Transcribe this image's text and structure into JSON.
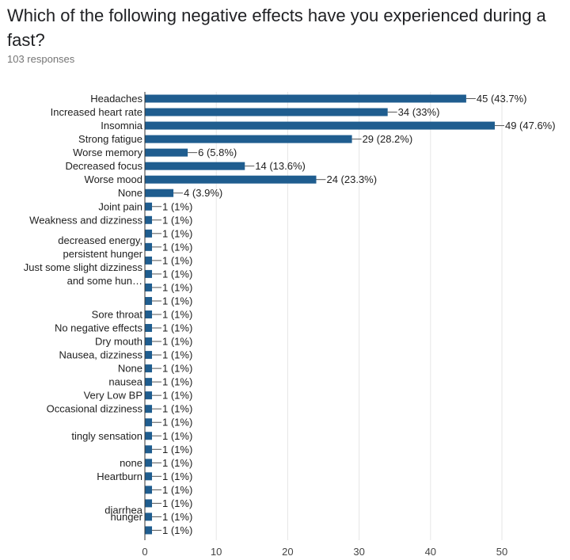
{
  "question": {
    "title": "Which of the following negative effects have you experienced during a fast?",
    "responses": "103 responses"
  },
  "colors": {
    "bar": "#1f5d8f",
    "grid": "#e6e6e6",
    "axis": "#333333",
    "text": "#212121"
  },
  "chart_data": {
    "type": "bar",
    "orientation": "horizontal",
    "title": "",
    "xlabel": "",
    "ylabel": "",
    "xlim": [
      0,
      50
    ],
    "xticks": [
      0,
      10,
      20,
      30,
      40,
      50
    ],
    "grid": true,
    "categories": [
      "Headaches",
      "Increased heart rate",
      "Insomnia",
      "Strong fatigue",
      "Worse memory",
      "Decreased focus",
      "Worse mood",
      "None",
      "Joint pain",
      "Weakness and dizziness",
      "",
      "",
      "",
      "",
      "",
      "",
      "Sore throat",
      "No negative effects",
      "Dry mouth",
      "Nausea, dizziness",
      "None",
      "nausea",
      "Very Low BP",
      "Occasional dizziness",
      "",
      "",
      "",
      "none",
      "Heartburn",
      "",
      "",
      "hunger",
      ""
    ],
    "wrapped_labels": [
      {
        "text": "decreased energy,",
        "after_row": 10
      },
      {
        "text": "persistent hunger",
        "after_row": 11
      },
      {
        "text": "Just some slight dizziness",
        "after_row": 12
      },
      {
        "text": "and some hun…",
        "after_row": 13
      },
      {
        "text": "tingly sensation",
        "after_row": 24.5
      },
      {
        "text": "diarrhea",
        "after_row": 30
      }
    ],
    "values": [
      45,
      34,
      49,
      29,
      6,
      14,
      24,
      4,
      1,
      1,
      1,
      1,
      1,
      1,
      1,
      1,
      1,
      1,
      1,
      1,
      1,
      1,
      1,
      1,
      1,
      1,
      1,
      1,
      1,
      1,
      1,
      1,
      1
    ],
    "data_labels": [
      "45 (43.7%)",
      "34 (33%)",
      "49 (47.6%)",
      "29 (28.2%)",
      "6 (5.8%)",
      "14 (13.6%)",
      "24 (23.3%)",
      "4 (3.9%)",
      "1 (1%)",
      "1 (1%)",
      "1 (1%)",
      "1 (1%)",
      "1 (1%)",
      "1 (1%)",
      "1 (1%)",
      "1 (1%)",
      "1 (1%)",
      "1 (1%)",
      "1 (1%)",
      "1 (1%)",
      "1 (1%)",
      "1 (1%)",
      "1 (1%)",
      "1 (1%)",
      "1 (1%)",
      "1 (1%)",
      "1 (1%)",
      "1 (1%)",
      "1 (1%)",
      "1 (1%)",
      "1 (1%)",
      "1 (1%)",
      "1 (1%)"
    ]
  }
}
